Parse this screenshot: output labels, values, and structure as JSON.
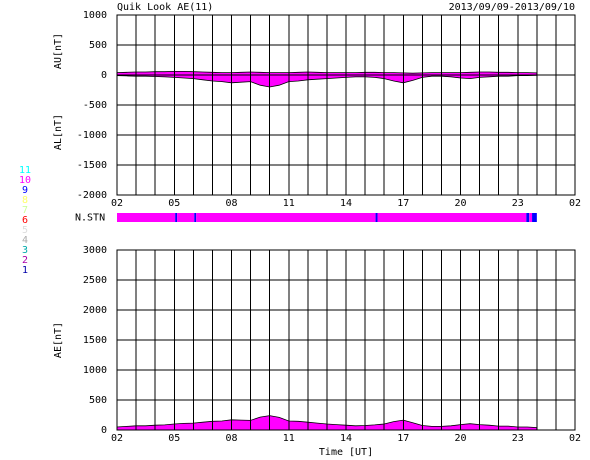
{
  "header": {
    "title": "Quik Look AE(11)",
    "date_range": "2013/09/09-2013/09/10"
  },
  "chart_data": [
    {
      "type": "area",
      "y_labels": [
        "AU[nT]",
        "AL[nT]"
      ],
      "x": [
        0,
        0.5,
        1,
        1.5,
        2,
        2.5,
        3,
        3.5,
        4,
        4.5,
        5,
        5.5,
        6,
        6.5,
        7,
        7.5,
        8,
        8.5,
        9,
        9.5,
        10,
        10.5,
        11,
        11.5,
        12,
        12.5,
        13,
        13.5,
        14,
        14.5,
        15,
        15.5,
        16,
        16.5,
        17,
        17.5,
        18,
        18.5,
        19,
        19.5,
        20,
        20.5,
        21,
        21.5,
        22
      ],
      "series": [
        {
          "color": "#ff00ff",
          "values": [
            40,
            45,
            50,
            50,
            55,
            55,
            60,
            60,
            55,
            50,
            45,
            40,
            40,
            45,
            50,
            45,
            40,
            40,
            40,
            45,
            50,
            45,
            40,
            40,
            40,
            40,
            45,
            45,
            40,
            40,
            35,
            30,
            35,
            40,
            40,
            40,
            40,
            45,
            50,
            50,
            45,
            45,
            40,
            40,
            35
          ]
        },
        {
          "color": "#ff00ff",
          "values": [
            -10,
            -15,
            -20,
            -20,
            -25,
            -30,
            -40,
            -50,
            -60,
            -80,
            -100,
            -110,
            -130,
            -120,
            -110,
            -170,
            -200,
            -170,
            -110,
            -100,
            -80,
            -70,
            -60,
            -50,
            -40,
            -30,
            -30,
            -40,
            -60,
            -100,
            -130,
            -90,
            -40,
            -20,
            -20,
            -30,
            -50,
            -60,
            -40,
            -30,
            -20,
            -20,
            -10,
            -10,
            -5
          ]
        }
      ],
      "xlim": [
        0,
        24
      ],
      "xticks": [
        {
          "value": 0,
          "label": "02"
        },
        {
          "value": 3,
          "label": "05"
        },
        {
          "value": 6,
          "label": "08"
        },
        {
          "value": 9,
          "label": "11"
        },
        {
          "value": 12,
          "label": "14"
        },
        {
          "value": 15,
          "label": "17"
        },
        {
          "value": 18,
          "label": "20"
        },
        {
          "value": 21,
          "label": "23"
        },
        {
          "value": 24,
          "label": "02"
        }
      ],
      "xgrid": [
        0,
        1,
        2,
        3,
        4,
        5,
        6,
        7,
        8,
        9,
        10,
        11,
        12,
        13,
        14,
        15,
        16,
        17,
        18,
        19,
        20,
        21,
        22,
        23,
        24
      ],
      "ylim": [
        -2000,
        1000
      ],
      "yticks": [
        -2000,
        -1500,
        -1000,
        -500,
        0,
        500,
        1000
      ],
      "grid": true
    },
    {
      "type": "stations",
      "label": "N.STN",
      "xlim": [
        0,
        24
      ],
      "segments": [
        {
          "start": 0,
          "end": 3.05,
          "count": 10
        },
        {
          "start": 3.05,
          "end": 3.15,
          "count": 9
        },
        {
          "start": 3.15,
          "end": 4.05,
          "count": 10
        },
        {
          "start": 4.05,
          "end": 4.15,
          "count": 9
        },
        {
          "start": 4.15,
          "end": 13.55,
          "count": 10
        },
        {
          "start": 13.55,
          "end": 13.65,
          "count": 9
        },
        {
          "start": 13.65,
          "end": 21.45,
          "count": 10
        },
        {
          "start": 21.45,
          "end": 21.6,
          "count": 9
        },
        {
          "start": 21.6,
          "end": 21.75,
          "count": 10
        },
        {
          "start": 21.75,
          "end": 22.0,
          "count": 9
        }
      ],
      "legend": {
        "counts": [
          11,
          10,
          9,
          8,
          7,
          6,
          5,
          4,
          3,
          2,
          1
        ],
        "colors": [
          "#00ffff",
          "#ff00ff",
          "#0000ff",
          "#ffff66",
          "#ccff99",
          "#ff0000",
          "#dddddd",
          "#aaaaaa",
          "#00aaaa",
          "#aa00aa",
          "#0000aa"
        ]
      }
    },
    {
      "type": "area",
      "y_labels": [
        "AE[nT]"
      ],
      "xlabel": "Time [UT]",
      "x": [
        0,
        0.5,
        1,
        1.5,
        2,
        2.5,
        3,
        3.5,
        4,
        4.5,
        5,
        5.5,
        6,
        6.5,
        7,
        7.5,
        8,
        8.5,
        9,
        9.5,
        10,
        10.5,
        11,
        11.5,
        12,
        12.5,
        13,
        13.5,
        14,
        14.5,
        15,
        15.5,
        16,
        16.5,
        17,
        17.5,
        18,
        18.5,
        19,
        19.5,
        20,
        20.5,
        21,
        21.5,
        22
      ],
      "series": [
        {
          "color": "#ff00ff",
          "values": [
            50,
            60,
            70,
            70,
            80,
            85,
            100,
            110,
            115,
            130,
            145,
            150,
            170,
            165,
            160,
            215,
            240,
            210,
            150,
            145,
            130,
            115,
            100,
            90,
            80,
            70,
            75,
            85,
            100,
            140,
            165,
            120,
            75,
            60,
            60,
            70,
            90,
            105,
            90,
            80,
            65,
            65,
            50,
            50,
            40
          ]
        }
      ],
      "xlim": [
        0,
        24
      ],
      "xticks": [
        {
          "value": 0,
          "label": "02"
        },
        {
          "value": 3,
          "label": "05"
        },
        {
          "value": 6,
          "label": "08"
        },
        {
          "value": 9,
          "label": "11"
        },
        {
          "value": 12,
          "label": "14"
        },
        {
          "value": 15,
          "label": "17"
        },
        {
          "value": 18,
          "label": "20"
        },
        {
          "value": 21,
          "label": "23"
        },
        {
          "value": 24,
          "label": "02"
        }
      ],
      "xgrid": [
        0,
        1,
        2,
        3,
        4,
        5,
        6,
        7,
        8,
        9,
        10,
        11,
        12,
        13,
        14,
        15,
        16,
        17,
        18,
        19,
        20,
        21,
        22,
        23,
        24
      ],
      "ylim": [
        0,
        3000
      ],
      "yticks": [
        0,
        500,
        1000,
        1500,
        2000,
        2500,
        3000
      ],
      "grid": true
    }
  ]
}
